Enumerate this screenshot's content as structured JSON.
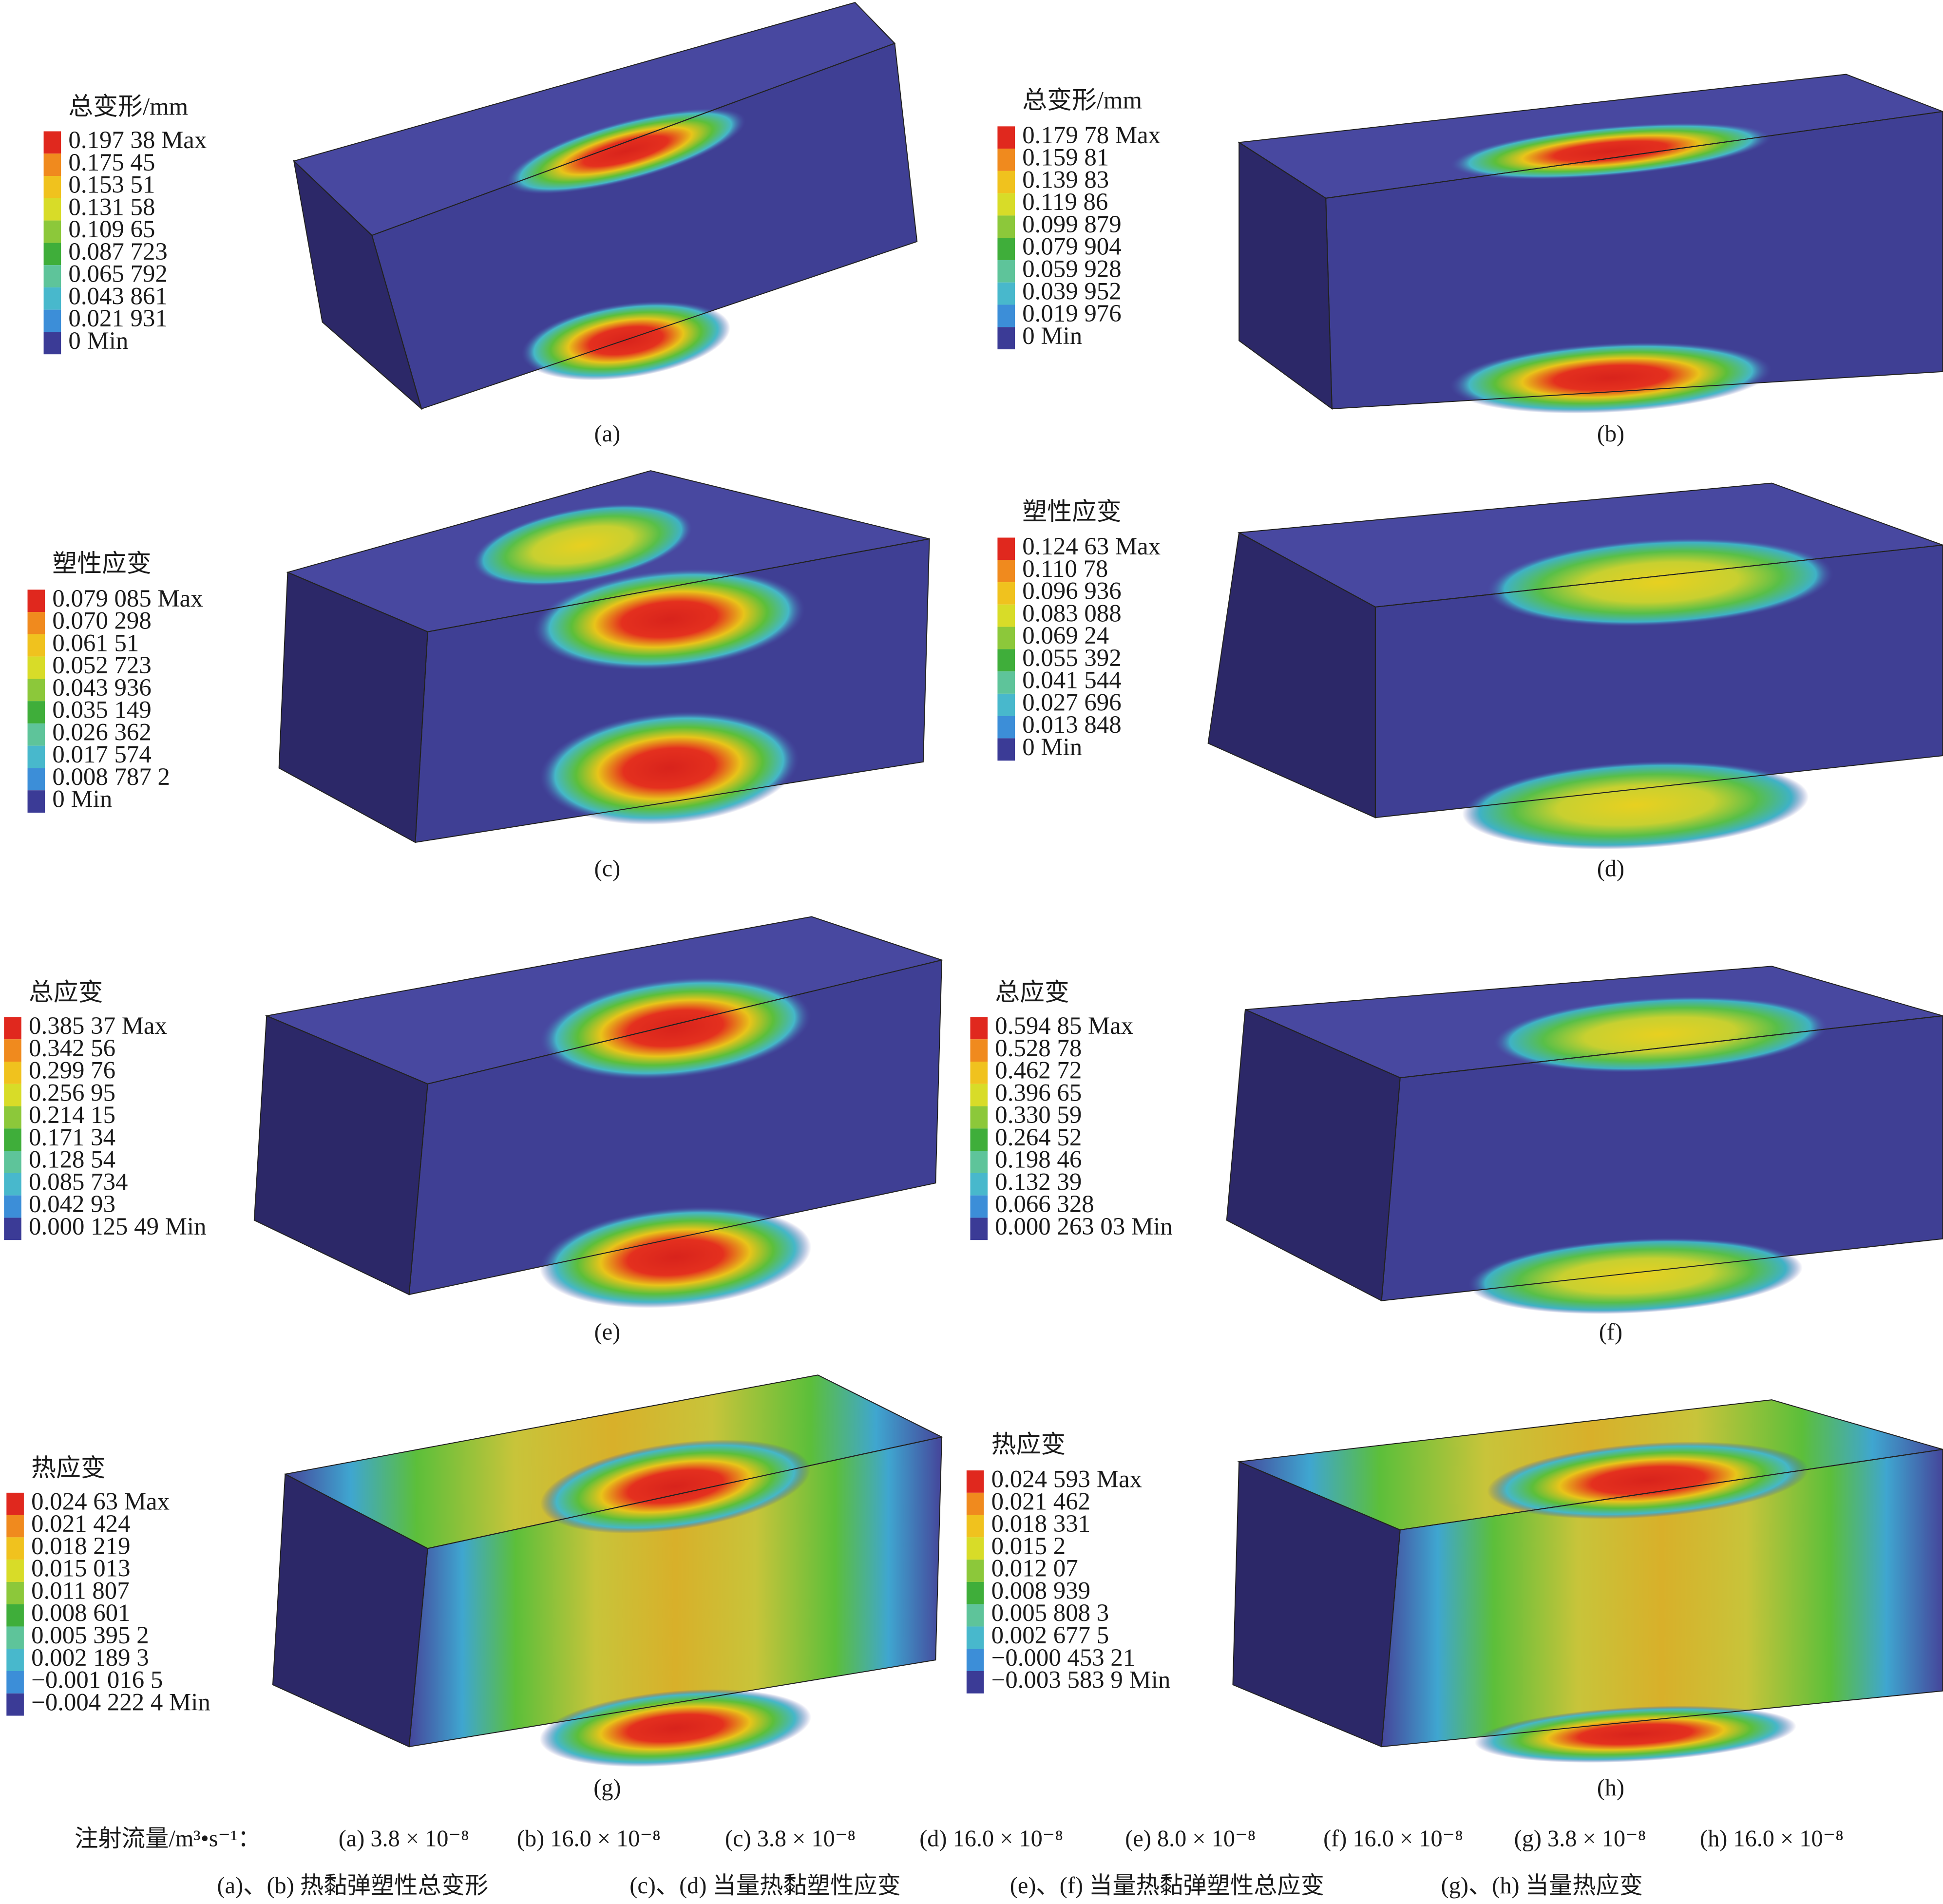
{
  "panels": [
    {
      "legend_title": "总变形/mm",
      "legend_labels": [
        "0.197 38 Max",
        "0.175 45",
        "0.153 51",
        "0.131 58",
        "0.109 65",
        "0.087 723",
        "0.065 792",
        "0.043 861",
        "0.021 931",
        "0 Min"
      ],
      "caption": "(a)"
    },
    {
      "legend_title": "总变形/mm",
      "legend_labels": [
        "0.179 78 Max",
        "0.159 81",
        "0.139 83",
        "0.119 86",
        "0.099 879",
        "0.079 904",
        "0.059 928",
        "0.039 952",
        "0.019 976",
        "0 Min"
      ],
      "caption": "(b)"
    },
    {
      "legend_title": "塑性应变",
      "legend_labels": [
        "0.079 085 Max",
        "0.070 298",
        "0.061 51",
        "0.052 723",
        "0.043 936",
        "0.035 149",
        "0.026 362",
        "0.017 574",
        "0.008 787 2",
        "0 Min"
      ],
      "caption": "(c)"
    },
    {
      "legend_title": "塑性应变",
      "legend_labels": [
        "0.124 63 Max",
        "0.110 78",
        "0.096 936",
        "0.083 088",
        "0.069 24",
        "0.055 392",
        "0.041 544",
        "0.027 696",
        "0.013 848",
        "0 Min"
      ],
      "caption": "(d)"
    },
    {
      "legend_title": "总应变",
      "legend_labels": [
        "0.385 37 Max",
        "0.342 56",
        "0.299 76",
        "0.256 95",
        "0.214 15",
        "0.171 34",
        "0.128 54",
        "0.085 734",
        "0.042 93",
        "0.000 125 49 Min"
      ],
      "caption": "(e)"
    },
    {
      "legend_title": "总应变",
      "legend_labels": [
        "0.594 85 Max",
        "0.528 78",
        "0.462 72",
        "0.396 65",
        "0.330 59",
        "0.264 52",
        "0.198 46",
        "0.132 39",
        "0.066 328",
        "0.000 263 03 Min"
      ],
      "caption": "(f)"
    },
    {
      "legend_title": "热应变",
      "legend_labels": [
        "0.024 63 Max",
        "0.021 424",
        "0.018 219",
        "0.015 013",
        "0.011 807",
        "0.008 601",
        "0.005 395 2",
        "0.002 189 3",
        "−0.001 016 5",
        "−0.004 222 4 Min"
      ],
      "caption": "(g)"
    },
    {
      "legend_title": "热应变",
      "legend_labels": [
        "0.024 593 Max",
        "0.021 462",
        "0.018 331",
        "0.015 2",
        "0.012 07",
        "0.008 939",
        "0.005 808 3",
        "0.002 677 5",
        "−0.000 453 21",
        "−0.003 583 9 Min"
      ],
      "caption": "(h)"
    }
  ],
  "footer": {
    "flow_label": "注射流量/m³•s⁻¹：",
    "flows": [
      "(a) 3.8 × 10⁻⁸",
      "(b) 16.0 × 10⁻⁸",
      "(c) 3.8 × 10⁻⁸",
      "(d) 16.0 × 10⁻⁸",
      "(e) 8.0 × 10⁻⁸",
      "(f) 16.0 × 10⁻⁸",
      "(g) 3.8 × 10⁻⁸",
      "(h) 16.0 × 10⁻⁸"
    ],
    "descriptions": [
      "(a)、(b) 热黏弹塑性总变形",
      "(c)、(d) 当量热黏塑性应变",
      "(e)、(f) 当量热黏弹塑性总应变",
      "(g)、(h) 当量热应变"
    ]
  }
}
